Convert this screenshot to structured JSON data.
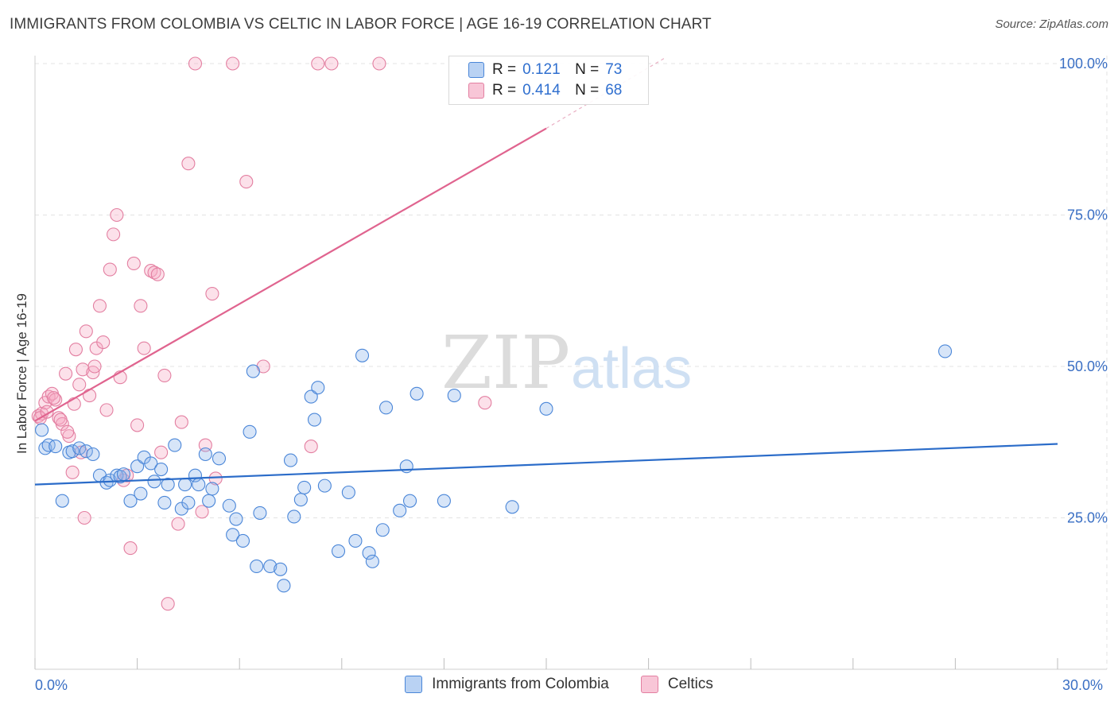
{
  "title": "IMMIGRANTS FROM COLOMBIA VS CELTIC IN LABOR FORCE | AGE 16-19 CORRELATION CHART",
  "source": "Source: ZipAtlas.com",
  "watermark": {
    "zip": "ZIP",
    "atlas": "atlas"
  },
  "colors": {
    "blue": "#4a86d8",
    "blue_fill": "rgba(140,180,235,0.35)",
    "pink": "#e37fa1",
    "pink_fill": "rgba(245,170,195,0.35)",
    "blue_line": "#2b6cc9",
    "pink_line": "#e0648f",
    "axis_label": "#3a6fc4"
  },
  "legend": {
    "rows": [
      {
        "r_label": "R =",
        "r_value": "0.121",
        "n_label": "N =",
        "n_value": "73"
      },
      {
        "r_label": "R =",
        "r_value": "0.414",
        "n_label": "N =",
        "n_value": "68"
      }
    ]
  },
  "bottom_legend": [
    "Immigrants from Colombia",
    "Celtics"
  ],
  "chart_data": {
    "type": "scatter",
    "title": "IMMIGRANTS FROM COLOMBIA VS CELTIC IN LABOR FORCE | AGE 16-19 CORRELATION CHART",
    "xlabel": "",
    "ylabel": "In Labor Force | Age 16-19",
    "xlim": [
      0,
      30
    ],
    "ylim": [
      0,
      102
    ],
    "x_tick_labels": [
      "0.0%",
      "30.0%"
    ],
    "y_ticks": [
      25,
      50,
      75,
      100
    ],
    "y_tick_labels": [
      "25.0%",
      "50.0%",
      "75.0%",
      "100.0%"
    ],
    "grid": true,
    "series": [
      {
        "name": "Immigrants from Colombia",
        "trend": {
          "x": [
            0,
            30
          ],
          "y": [
            30.5,
            37.2
          ]
        },
        "points": [
          [
            0.2,
            39.5
          ],
          [
            0.3,
            36.5
          ],
          [
            0.4,
            37
          ],
          [
            0.6,
            36.8
          ],
          [
            0.8,
            27.8
          ],
          [
            1,
            35.8
          ],
          [
            1.1,
            36
          ],
          [
            1.3,
            36.5
          ],
          [
            1.5,
            36
          ],
          [
            1.7,
            35.5
          ],
          [
            1.9,
            32
          ],
          [
            2.1,
            30.8
          ],
          [
            2.2,
            31.2
          ],
          [
            2.4,
            32
          ],
          [
            2.5,
            31.8
          ],
          [
            2.6,
            32.2
          ],
          [
            2.8,
            27.8
          ],
          [
            3,
            33.5
          ],
          [
            3.1,
            29
          ],
          [
            3.2,
            35
          ],
          [
            3.4,
            34
          ],
          [
            3.5,
            31
          ],
          [
            3.7,
            33
          ],
          [
            3.8,
            27.5
          ],
          [
            3.9,
            30.5
          ],
          [
            4.1,
            37
          ],
          [
            4.3,
            26.5
          ],
          [
            4.4,
            30.5
          ],
          [
            4.5,
            27.5
          ],
          [
            4.7,
            32
          ],
          [
            4.8,
            30.5
          ],
          [
            5,
            35.5
          ],
          [
            5.1,
            27.8
          ],
          [
            5.2,
            29.8
          ],
          [
            5.4,
            34.8
          ],
          [
            5.7,
            27
          ],
          [
            5.8,
            22.2
          ],
          [
            5.9,
            24.8
          ],
          [
            6.1,
            21.2
          ],
          [
            6.3,
            39.2
          ],
          [
            6.4,
            49.2
          ],
          [
            6.5,
            17
          ],
          [
            6.6,
            25.8
          ],
          [
            6.9,
            17
          ],
          [
            7.2,
            16.5
          ],
          [
            7.3,
            13.8
          ],
          [
            7.5,
            34.5
          ],
          [
            7.6,
            25.2
          ],
          [
            7.8,
            28
          ],
          [
            7.9,
            30
          ],
          [
            8.1,
            45
          ],
          [
            8.2,
            41.2
          ],
          [
            8.3,
            46.5
          ],
          [
            8.5,
            30.3
          ],
          [
            8.9,
            19.5
          ],
          [
            9.2,
            29.2
          ],
          [
            9.4,
            21.2
          ],
          [
            9.6,
            51.8
          ],
          [
            9.8,
            19.2
          ],
          [
            9.9,
            17.8
          ],
          [
            10.2,
            23
          ],
          [
            10.3,
            43.2
          ],
          [
            10.7,
            26.2
          ],
          [
            10.9,
            33.5
          ],
          [
            11,
            27.8
          ],
          [
            11.2,
            45.5
          ],
          [
            12,
            27.8
          ],
          [
            12.3,
            45.2
          ],
          [
            14,
            26.8
          ],
          [
            15,
            43
          ],
          [
            26.7,
            52.5
          ]
        ]
      },
      {
        "name": "Celtics",
        "trend": {
          "x": [
            0,
            15
          ],
          "y": [
            41,
            89.3
          ]
        },
        "trend_dashed": {
          "x": [
            15,
            18.5
          ],
          "y": [
            89.3,
            101
          ]
        },
        "points": [
          [
            0.1,
            41.8
          ],
          [
            0.2,
            42.2
          ],
          [
            0.3,
            44
          ],
          [
            0.4,
            45
          ],
          [
            0.5,
            45.5
          ],
          [
            0.6,
            44.5
          ],
          [
            0.7,
            41.5
          ],
          [
            0.8,
            40.5
          ],
          [
            0.9,
            48.8
          ],
          [
            1,
            38.5
          ],
          [
            1.1,
            32.5
          ],
          [
            1.2,
            52.8
          ],
          [
            1.3,
            47
          ],
          [
            1.4,
            49.5
          ],
          [
            1.5,
            55.8
          ],
          [
            1.6,
            45.2
          ],
          [
            1.7,
            49
          ],
          [
            1.8,
            53
          ],
          [
            1.9,
            60
          ],
          [
            2,
            54
          ],
          [
            2.1,
            42.8
          ],
          [
            2.2,
            66
          ],
          [
            2.3,
            71.8
          ],
          [
            2.4,
            75
          ],
          [
            2.5,
            48.2
          ],
          [
            2.6,
            31.2
          ],
          [
            2.7,
            32
          ],
          [
            2.8,
            20
          ],
          [
            2.9,
            67
          ],
          [
            3,
            40.3
          ],
          [
            3.1,
            60
          ],
          [
            3.2,
            53
          ],
          [
            3.4,
            65.8
          ],
          [
            3.5,
            65.5
          ],
          [
            3.6,
            65.2
          ],
          [
            3.7,
            35.8
          ],
          [
            3.8,
            48.5
          ],
          [
            3.9,
            10.8
          ],
          [
            4.2,
            24
          ],
          [
            4.3,
            40.8
          ],
          [
            4.5,
            83.5
          ],
          [
            4.7,
            100
          ],
          [
            4.9,
            26
          ],
          [
            5,
            37
          ],
          [
            5.2,
            62
          ],
          [
            5.3,
            31.5
          ],
          [
            5.8,
            100
          ],
          [
            6.2,
            80.5
          ],
          [
            6.7,
            50
          ],
          [
            8.1,
            36.8
          ],
          [
            8.3,
            100
          ],
          [
            8.7,
            100
          ],
          [
            10.1,
            100
          ],
          [
            13.2,
            44
          ],
          [
            0.15,
            41.5
          ],
          [
            0.35,
            42.5
          ],
          [
            0.55,
            44.8
          ],
          [
            0.75,
            41.2
          ],
          [
            0.95,
            39.2
          ],
          [
            1.15,
            43.8
          ],
          [
            1.35,
            35.8
          ],
          [
            1.45,
            25
          ],
          [
            1.75,
            50
          ]
        ]
      }
    ]
  }
}
